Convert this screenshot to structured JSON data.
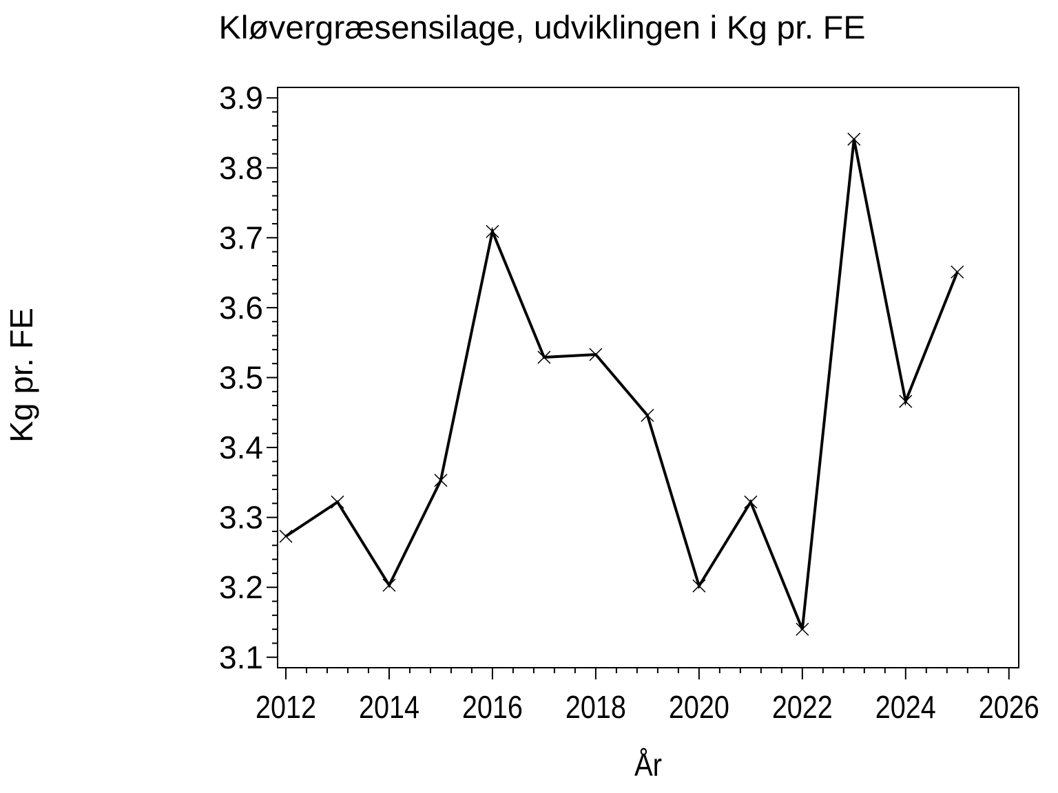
{
  "page": {
    "background_color": "#ffffff",
    "foreground_color": "#000000"
  },
  "chart_data": {
    "type": "line",
    "title": "Kløvergræsensilage, udviklingen i Kg pr. FE",
    "xlabel": "År",
    "ylabel": "Kg pr. FE",
    "x": [
      2012,
      2013,
      2014,
      2015,
      2016,
      2017,
      2018,
      2019,
      2020,
      2021,
      2022,
      2023,
      2024,
      2025
    ],
    "series": [
      {
        "name": "Kg pr. FE",
        "values": [
          3.273,
          3.322,
          3.203,
          3.353,
          3.709,
          3.529,
          3.533,
          3.446,
          3.202,
          3.322,
          3.14,
          3.841,
          3.466,
          3.651
        ]
      }
    ],
    "xlim": [
      2011.84,
      2026.19
    ],
    "ylim": [
      3.085,
      3.915
    ],
    "x_ticks": [
      2012,
      2014,
      2016,
      2018,
      2020,
      2022,
      2024,
      2026
    ],
    "x_minor_ticks_per_interval": 4,
    "x_minor_step": 0.4,
    "y_ticks": [
      3.1,
      3.2,
      3.3,
      3.4,
      3.5,
      3.6,
      3.7,
      3.8,
      3.9
    ],
    "y_minor_ticks_per_interval": 4,
    "y_minor_step": 0.02,
    "marker": "x",
    "line_color": "#000000",
    "marker_color": "#000000",
    "grid": false,
    "legend": "none"
  }
}
